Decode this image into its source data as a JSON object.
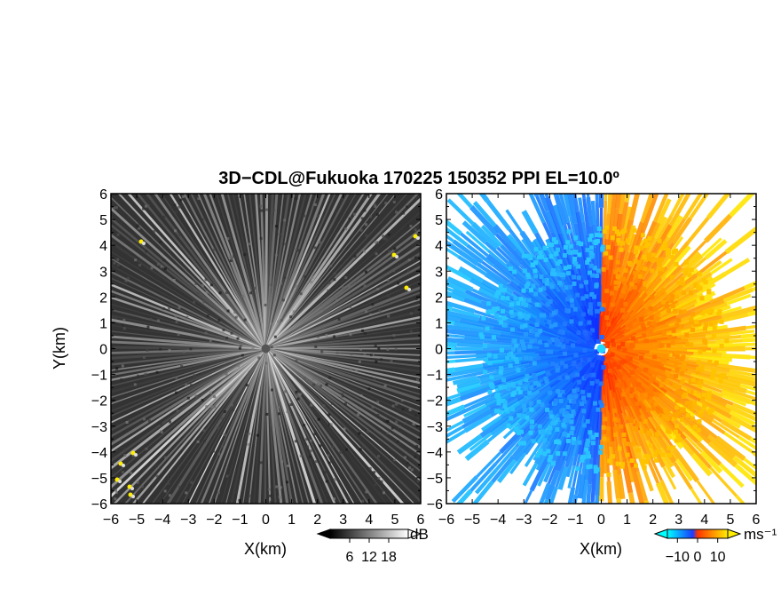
{
  "title": "3D−CDL@Fukuoka 170225 150352 PPI EL=10.0º",
  "chart_data": [
    {
      "type": "heatmap",
      "panel": "left",
      "quantity": "SNR",
      "xlabel": "X(km)",
      "ylabel": "Y(km)",
      "xlim": [
        -6,
        6
      ],
      "ylim": [
        -6,
        6
      ],
      "x_ticks": [
        "−6",
        "−5",
        "−4",
        "−3",
        "−2",
        "−1",
        "0",
        "1",
        "2",
        "3",
        "4",
        "5",
        "6"
      ],
      "y_ticks": [
        "6",
        "5",
        "4",
        "3",
        "2",
        "1",
        "0",
        "−1",
        "−2",
        "−3",
        "−4",
        "−5",
        "−6"
      ],
      "colorbar": {
        "unit": "dB",
        "ticks": [
          6,
          12,
          18
        ],
        "range": [
          0,
          24
        ],
        "colors": [
          "#000000",
          "#ffffff"
        ],
        "extends": "both"
      },
      "highlight_color": "#ffee00"
    },
    {
      "type": "heatmap",
      "panel": "right",
      "quantity": "Doppler velocity",
      "xlabel": "X(km)",
      "ylabel": "",
      "xlim": [
        -6,
        6
      ],
      "ylim": [
        -6,
        6
      ],
      "x_ticks": [
        "−6",
        "−5",
        "−4",
        "−3",
        "−2",
        "−1",
        "0",
        "1",
        "2",
        "3",
        "4",
        "5",
        "6"
      ],
      "y_ticks": [
        "6",
        "5",
        "4",
        "3",
        "2",
        "1",
        "0",
        "−1",
        "−2",
        "−3",
        "−4",
        "−5",
        "−6"
      ],
      "colorbar": {
        "unit": "ms⁻¹",
        "ticks": [
          -10,
          0,
          10
        ],
        "range": [
          -15,
          15
        ],
        "colors": [
          "#00ffff",
          "#1b3cff",
          "#ff3300",
          "#ffee00"
        ],
        "extends": "both"
      }
    }
  ]
}
